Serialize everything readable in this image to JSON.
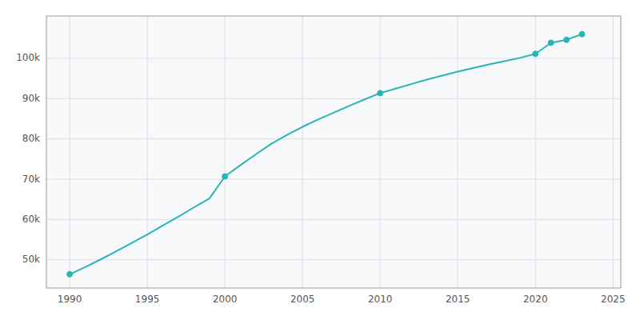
{
  "chart_data": {
    "type": "line",
    "x": [
      1990,
      1991,
      1992,
      1993,
      1994,
      1995,
      1996,
      1997,
      1998,
      1999,
      2000,
      2001,
      2002,
      2003,
      2004,
      2005,
      2006,
      2007,
      2008,
      2009,
      2010,
      2011,
      2012,
      2013,
      2014,
      2015,
      2016,
      2017,
      2018,
      2019,
      2020,
      2021,
      2022,
      2023
    ],
    "series": [
      {
        "color": "#2ab5b5",
        "values": [
          46418,
          48200,
          50100,
          52100,
          54200,
          56300,
          58500,
          60700,
          63000,
          65200,
          70700,
          73500,
          76200,
          78800,
          81000,
          83000,
          84800,
          86500,
          88200,
          89800,
          91364,
          92500,
          93600,
          94700,
          95700,
          96700,
          97600,
          98500,
          99300,
          100100,
          101108,
          103860,
          104590,
          106000
        ]
      },
      {
        "type": "scatter",
        "marker": "circle",
        "color": "#2ab5b5",
        "x": [
          1990,
          2000,
          2010,
          2020,
          2021,
          2022,
          2023
        ],
        "values": [
          46418,
          70700,
          91364,
          101108,
          103860,
          104590,
          106000
        ]
      }
    ],
    "xlim": [
      1988.5,
      2025.5
    ],
    "ylim": [
      43000,
      110500
    ],
    "xticks": [
      1990,
      1995,
      2000,
      2005,
      2010,
      2015,
      2020,
      2025
    ],
    "yticks": [
      {
        "value": 50000,
        "label": "50k"
      },
      {
        "value": 60000,
        "label": "60k"
      },
      {
        "value": 70000,
        "label": "70k"
      },
      {
        "value": 80000,
        "label": "80k"
      },
      {
        "value": 90000,
        "label": "90k"
      },
      {
        "value": 100000,
        "label": "100k"
      }
    ],
    "grid": true
  }
}
